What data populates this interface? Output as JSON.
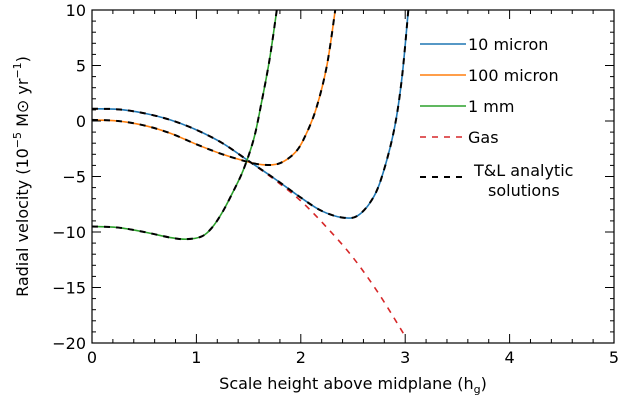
{
  "chart_data": {
    "type": "line",
    "xlabel": "Scale height above midplane (h",
    "xlabel_sub": "g",
    "xlabel_end": ")",
    "ylabel": "Radial velocity (10",
    "ylabel_exp": "−5",
    "ylabel_mid": " M",
    "ylabel_sym": "⊙",
    "ylabel_unit": " yr",
    "ylabel_unit_exp": "−1",
    "ylabel_end": ")",
    "xlim": [
      0,
      5
    ],
    "ylim": [
      -20,
      10
    ],
    "x_ticks": [
      0,
      1,
      2,
      3,
      4,
      5
    ],
    "y_ticks": [
      -20,
      -15,
      -10,
      -5,
      0,
      5,
      10
    ],
    "x_tick_labels": [
      "0",
      "1",
      "2",
      "3",
      "4",
      "5"
    ],
    "y_tick_labels": [
      "−20",
      "−15",
      "−10",
      "−5",
      "0",
      "5",
      "10"
    ],
    "grid": false,
    "legend_position": "right",
    "series": [
      {
        "name": "10 micron",
        "color": "#1f77b4",
        "style": "solid",
        "points": [
          [
            0,
            1.1
          ],
          [
            0.25,
            1.05
          ],
          [
            0.5,
            0.7
          ],
          [
            0.75,
            0.1
          ],
          [
            1.0,
            -0.8
          ],
          [
            1.25,
            -2.0
          ],
          [
            1.5,
            -3.6
          ],
          [
            1.75,
            -5.2
          ],
          [
            2.0,
            -6.9
          ],
          [
            2.2,
            -8.1
          ],
          [
            2.4,
            -8.7
          ],
          [
            2.55,
            -8.5
          ],
          [
            2.7,
            -6.8
          ],
          [
            2.8,
            -4.3
          ],
          [
            2.9,
            -0.5
          ],
          [
            2.97,
            4.0
          ],
          [
            3.03,
            10.0
          ]
        ]
      },
      {
        "name": "100 micron",
        "color": "#ff7f0e",
        "style": "solid",
        "points": [
          [
            0,
            0.1
          ],
          [
            0.25,
            0.0
          ],
          [
            0.5,
            -0.4
          ],
          [
            0.75,
            -1.1
          ],
          [
            1.0,
            -2.1
          ],
          [
            1.25,
            -3.0
          ],
          [
            1.5,
            -3.7
          ],
          [
            1.65,
            -3.95
          ],
          [
            1.8,
            -3.8
          ],
          [
            1.95,
            -2.8
          ],
          [
            2.05,
            -1.2
          ],
          [
            2.15,
            1.2
          ],
          [
            2.25,
            5.0
          ],
          [
            2.33,
            10.0
          ]
        ]
      },
      {
        "name": "1 mm",
        "color": "#2ca02c",
        "style": "solid",
        "points": [
          [
            0,
            -9.5
          ],
          [
            0.25,
            -9.6
          ],
          [
            0.5,
            -10.0
          ],
          [
            0.75,
            -10.5
          ],
          [
            0.9,
            -10.65
          ],
          [
            1.05,
            -10.4
          ],
          [
            1.15,
            -9.6
          ],
          [
            1.25,
            -8.2
          ],
          [
            1.35,
            -6.4
          ],
          [
            1.45,
            -4.4
          ],
          [
            1.55,
            -1.6
          ],
          [
            1.62,
            1.5
          ],
          [
            1.7,
            5.5
          ],
          [
            1.77,
            10.0
          ]
        ]
      },
      {
        "name": "Gas",
        "color": "#d62728",
        "style": "dashed",
        "points": [
          [
            0,
            1.1
          ],
          [
            0.25,
            1.05
          ],
          [
            0.5,
            0.7
          ],
          [
            0.75,
            0.1
          ],
          [
            1.0,
            -0.8
          ],
          [
            1.25,
            -2.0
          ],
          [
            1.5,
            -3.6
          ],
          [
            1.75,
            -5.3
          ],
          [
            2.0,
            -7.2
          ],
          [
            2.25,
            -9.6
          ],
          [
            2.5,
            -12.3
          ],
          [
            2.75,
            -15.6
          ],
          [
            3.0,
            -19.4
          ]
        ]
      }
    ],
    "analytic_label_1": "T&L analytic",
    "analytic_label_2": "solutions",
    "analytic_color": "#000000"
  }
}
